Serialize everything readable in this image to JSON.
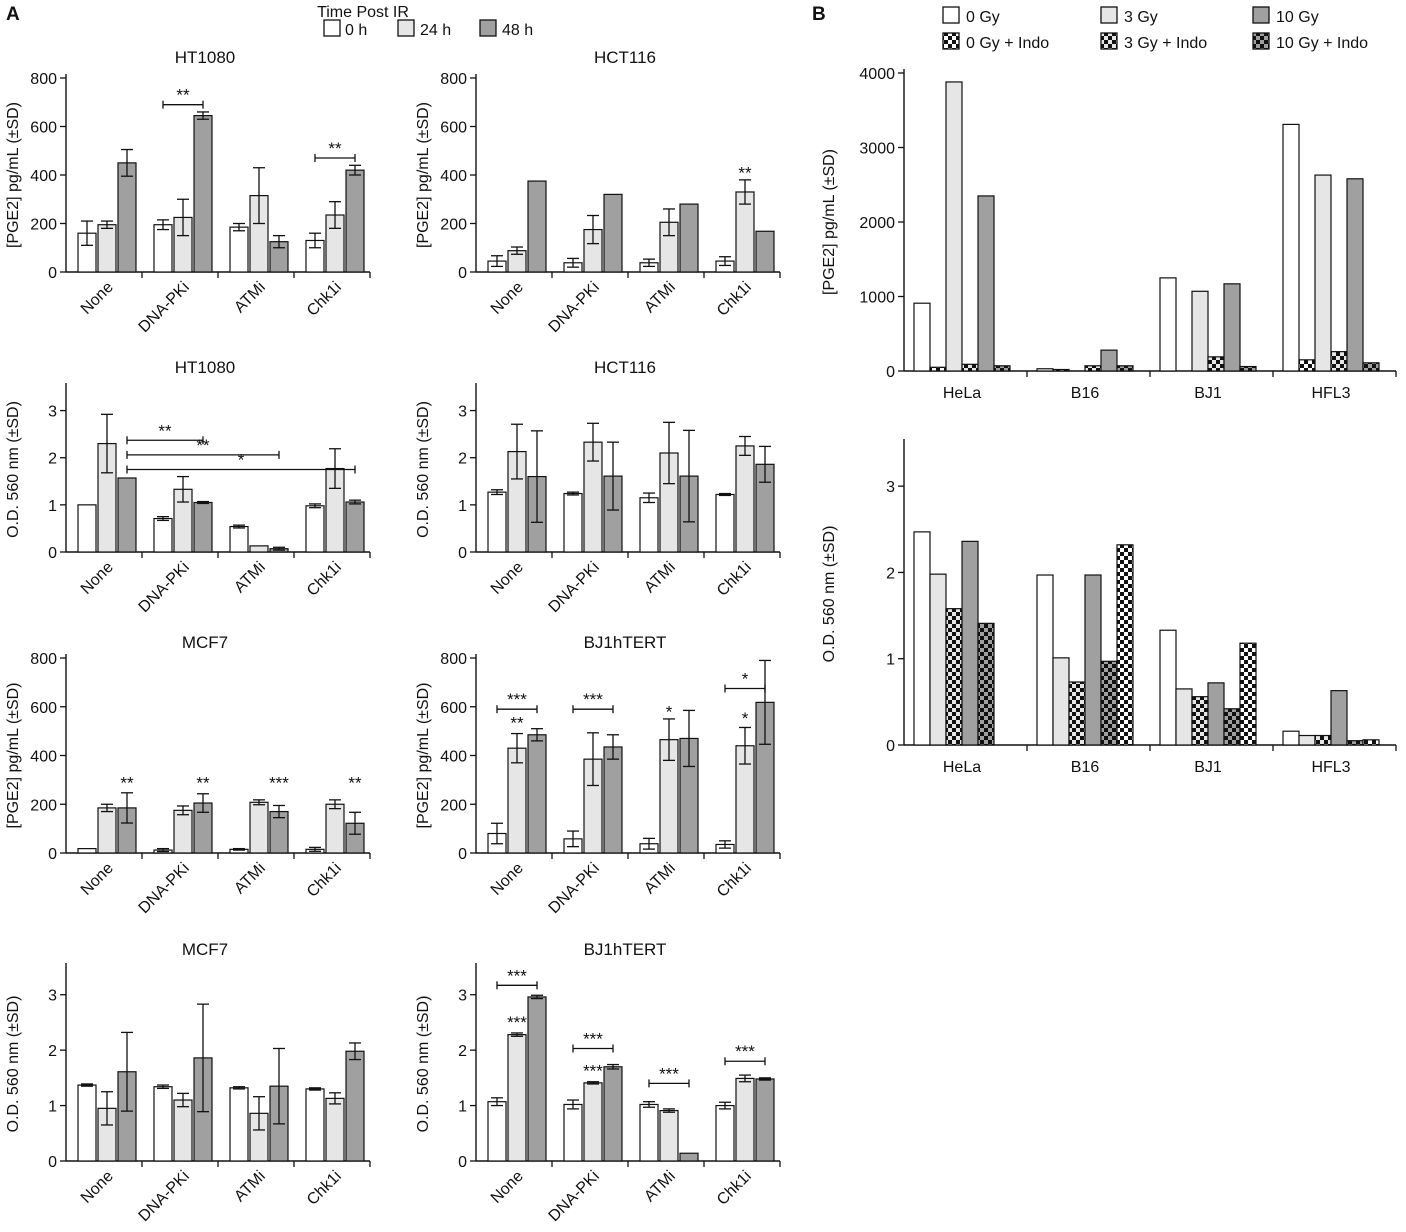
{
  "panel_labels": {
    "a": "A",
    "b": "B"
  },
  "legend_a": {
    "title": "Time Post IR",
    "items": [
      {
        "label": "0 h",
        "color": "#ffffff"
      },
      {
        "label": "24 h",
        "color": "#e6e6e6"
      },
      {
        "label": "48 h",
        "color": "#a0a0a0"
      }
    ]
  },
  "legend_b": {
    "items": [
      {
        "label": "0 Gy",
        "style": "white"
      },
      {
        "label": "3 Gy",
        "style": "light"
      },
      {
        "label": "10 Gy",
        "style": "dark"
      },
      {
        "label": "0 Gy + Indo",
        "style": "chk-white"
      },
      {
        "label": "3 Gy + Indo",
        "style": "chk-light"
      },
      {
        "label": "10 Gy + Indo",
        "style": "chk-dark"
      }
    ]
  },
  "colors": {
    "white": "#ffffff",
    "light": "#e6e6e6",
    "dark": "#a0a0a0",
    "stroke": "#111111"
  },
  "chart_data": [
    {
      "id": "a1",
      "type": "bar",
      "title": "HT1080",
      "ylabel": "[PGE2] pg/mL (±SD)",
      "ylim": [
        0,
        800
      ],
      "yticks": [
        "0",
        "200",
        "400",
        "600",
        "800"
      ],
      "categories": [
        "None",
        "DNA-PKi",
        "ATMi",
        "Chk1i"
      ],
      "series": [
        {
          "name": "0 h",
          "values": [
            160,
            195,
            185,
            130
          ],
          "err": [
            50,
            20,
            15,
            30
          ]
        },
        {
          "name": "24 h",
          "values": [
            195,
            225,
            315,
            235
          ],
          "err": [
            15,
            75,
            115,
            55
          ]
        },
        {
          "name": "48 h",
          "values": [
            450,
            645,
            125,
            420
          ],
          "err": [
            55,
            15,
            25,
            20
          ]
        }
      ],
      "brackets": [
        {
          "label": "**",
          "g1": 1,
          "s1": 0,
          "g2": 1,
          "s2": 2,
          "y": 690
        },
        {
          "label": "**",
          "g1": 3,
          "s1": 0,
          "g2": 3,
          "s2": 2,
          "y": 470
        }
      ],
      "stars": []
    },
    {
      "id": "a2",
      "type": "bar",
      "title": "HCT116",
      "ylabel": "[PGE2] pg/mL (±SD)",
      "ylim": [
        0,
        800
      ],
      "yticks": [
        "0",
        "200",
        "400",
        "600",
        "800"
      ],
      "categories": [
        "None",
        "DNA-PKi",
        "ATMi",
        "Chk1i"
      ],
      "series": [
        {
          "name": "0 h",
          "values": [
            45,
            38,
            38,
            45
          ],
          "err": [
            22,
            18,
            15,
            18
          ]
        },
        {
          "name": "24 h",
          "values": [
            88,
            175,
            205,
            330
          ],
          "err": [
            15,
            58,
            55,
            50
          ]
        },
        {
          "name": "48 h",
          "values": [
            375,
            320,
            280,
            168
          ],
          "err": [
            0,
            0,
            0,
            0
          ]
        }
      ],
      "brackets": [],
      "stars": [
        {
          "label": "**",
          "g": 3,
          "s": 1,
          "y": 385
        }
      ]
    },
    {
      "id": "a3",
      "type": "bar",
      "title": "HT1080",
      "ylabel": "O.D. 560 nm (±SD)",
      "ylim": [
        0,
        3.5
      ],
      "yticks": [
        "0",
        "1",
        "2",
        "3"
      ],
      "categories": [
        "None",
        "DNA-PKi",
        "ATMi",
        "Chk1i"
      ],
      "series": [
        {
          "name": "0 h",
          "values": [
            1.0,
            0.71,
            0.54,
            0.98
          ],
          "err": [
            0,
            0.04,
            0.03,
            0.04
          ]
        },
        {
          "name": "24 h",
          "values": [
            2.3,
            1.33,
            0.13,
            1.77
          ],
          "err": [
            0.62,
            0.27,
            0,
            0.42
          ]
        },
        {
          "name": "48 h",
          "values": [
            1.57,
            1.05,
            0.07,
            1.06
          ],
          "err": [
            0,
            0.02,
            0.03,
            0.04
          ]
        }
      ],
      "brackets": [
        {
          "label": "**",
          "g1": 0,
          "s1": 2,
          "g2": 1,
          "s2": 2,
          "y": 2.37
        },
        {
          "label": "**",
          "g1": 0,
          "s1": 2,
          "g2": 2,
          "s2": 2,
          "y": 2.06
        },
        {
          "label": "*",
          "g1": 0,
          "s1": 2,
          "g2": 3,
          "s2": 2,
          "y": 1.75
        }
      ],
      "stars": []
    },
    {
      "id": "a4",
      "type": "bar",
      "title": "HCT116",
      "ylabel": "O.D. 560 nm (±SD)",
      "ylim": [
        0,
        3.5
      ],
      "yticks": [
        "0",
        "1",
        "2",
        "3"
      ],
      "categories": [
        "None",
        "DNA-PKi",
        "ATMi",
        "Chk1i"
      ],
      "series": [
        {
          "name": "0 h",
          "values": [
            1.27,
            1.24,
            1.15,
            1.22
          ],
          "err": [
            0.05,
            0.03,
            0.1,
            0.02
          ]
        },
        {
          "name": "24 h",
          "values": [
            2.13,
            2.33,
            2.1,
            2.25
          ],
          "err": [
            0.58,
            0.4,
            0.65,
            0.2
          ]
        },
        {
          "name": "48 h",
          "values": [
            1.6,
            1.61,
            1.61,
            1.86
          ],
          "err": [
            0.97,
            0.72,
            0.97,
            0.38
          ]
        }
      ],
      "brackets": [],
      "stars": []
    },
    {
      "id": "a5",
      "type": "bar",
      "title": "MCF7",
      "ylabel": "[PGE2] pg/mL (±SD)",
      "ylim": [
        0,
        800
      ],
      "yticks": [
        "0",
        "200",
        "400",
        "600",
        "800"
      ],
      "categories": [
        "None",
        "DNA-PKi",
        "ATMi",
        "Chk1i"
      ],
      "series": [
        {
          "name": "0 h",
          "values": [
            18,
            12,
            15,
            15
          ],
          "err": [
            0,
            6,
            3,
            8
          ]
        },
        {
          "name": "24 h",
          "values": [
            185,
            175,
            208,
            200
          ],
          "err": [
            15,
            18,
            10,
            18
          ]
        },
        {
          "name": "48 h",
          "values": [
            185,
            205,
            170,
            122
          ],
          "err": [
            62,
            38,
            25,
            45
          ]
        }
      ],
      "brackets": [],
      "stars": [
        {
          "label": "**",
          "g": 0,
          "s": 2,
          "y": 265
        },
        {
          "label": "**",
          "g": 1,
          "s": 2,
          "y": 265
        },
        {
          "label": "***",
          "g": 2,
          "s": 2,
          "y": 265
        },
        {
          "label": "**",
          "g": 3,
          "s": 2,
          "y": 265
        }
      ]
    },
    {
      "id": "a6",
      "type": "bar",
      "title": "BJ1hTERT",
      "ylabel": "[PGE2] pg/mL (±SD)",
      "ylim": [
        0,
        800
      ],
      "yticks": [
        "0",
        "200",
        "400",
        "600",
        "800"
      ],
      "categories": [
        "None",
        "DNA-PKi",
        "ATMi",
        "Chk1i"
      ],
      "series": [
        {
          "name": "0 h",
          "values": [
            80,
            58,
            38,
            35
          ],
          "err": [
            42,
            32,
            22,
            15
          ]
        },
        {
          "name": "24 h",
          "values": [
            430,
            385,
            465,
            440
          ],
          "err": [
            60,
            108,
            85,
            75
          ]
        },
        {
          "name": "48 h",
          "values": [
            485,
            435,
            470,
            618
          ],
          "err": [
            25,
            50,
            115,
            172
          ]
        }
      ],
      "brackets": [
        {
          "label": "***",
          "g1": 0,
          "s1": 0,
          "g2": 0,
          "s2": 2,
          "y": 590
        },
        {
          "label": "***",
          "g1": 1,
          "s1": 0,
          "g2": 1,
          "s2": 2,
          "y": 590
        },
        {
          "label": "*",
          "g1": 3,
          "s1": 0,
          "g2": 3,
          "s2": 2,
          "y": 675
        }
      ],
      "stars": [
        {
          "label": "**",
          "g": 0,
          "s": 1,
          "y": 510
        },
        {
          "label": "*",
          "g": 2,
          "s": 1,
          "y": 555
        },
        {
          "label": "*",
          "g": 3,
          "s": 1,
          "y": 530
        }
      ]
    },
    {
      "id": "a7",
      "type": "bar",
      "title": "MCF7",
      "ylabel": "O.D. 560 nm (±SD)",
      "ylim": [
        0,
        3.5
      ],
      "yticks": [
        "0",
        "1",
        "2",
        "3"
      ],
      "categories": [
        "None",
        "DNA-PKi",
        "ATMi",
        "Chk1i"
      ],
      "series": [
        {
          "name": "0 h",
          "values": [
            1.37,
            1.34,
            1.32,
            1.3
          ],
          "err": [
            0.02,
            0.03,
            0.02,
            0.02
          ]
        },
        {
          "name": "24 h",
          "values": [
            0.95,
            1.1,
            0.86,
            1.13
          ],
          "err": [
            0.3,
            0.12,
            0.3,
            0.1
          ]
        },
        {
          "name": "48 h",
          "values": [
            1.61,
            1.86,
            1.35,
            1.98
          ],
          "err": [
            0.71,
            0.97,
            0.68,
            0.15
          ]
        }
      ],
      "brackets": [],
      "stars": []
    },
    {
      "id": "a8",
      "type": "bar",
      "title": "BJ1hTERT",
      "ylabel": "O.D. 560 nm (±SD)",
      "ylim": [
        0,
        3.5
      ],
      "yticks": [
        "0",
        "1",
        "2",
        "3"
      ],
      "categories": [
        "None",
        "DNA-PKi",
        "ATMi",
        "Chk1i"
      ],
      "series": [
        {
          "name": "0 h",
          "values": [
            1.07,
            1.02,
            1.02,
            1.0
          ],
          "err": [
            0.07,
            0.08,
            0.05,
            0.06
          ]
        },
        {
          "name": "24 h",
          "values": [
            2.28,
            1.41,
            0.91,
            1.49
          ],
          "err": [
            0.03,
            0.02,
            0.03,
            0.06
          ]
        },
        {
          "name": "48 h",
          "values": [
            2.96,
            1.7,
            0.14,
            1.48
          ],
          "err": [
            0.03,
            0.04,
            0,
            0.02
          ]
        }
      ],
      "brackets": [
        {
          "label": "***",
          "g1": 0,
          "s1": 0,
          "g2": 0,
          "s2": 2,
          "y": 3.17
        },
        {
          "label": "***",
          "g1": 1,
          "s1": 0,
          "g2": 1,
          "s2": 2,
          "y": 2.03
        },
        {
          "label": "***",
          "g1": 2,
          "s1": 0,
          "g2": 2,
          "s2": 2,
          "y": 1.4
        },
        {
          "label": "***",
          "g1": 3,
          "s1": 0,
          "g2": 3,
          "s2": 2,
          "y": 1.8
        }
      ],
      "stars": [
        {
          "label": "***",
          "g": 0,
          "s": 1,
          "y": 2.4
        },
        {
          "label": "***",
          "g": 1,
          "s": 1,
          "y": 1.52
        }
      ]
    },
    {
      "id": "b1",
      "type": "bar",
      "title": "",
      "ylabel": "[PGE2] pg/mL (±SD)",
      "ylim": [
        0,
        4000
      ],
      "yticks": [
        "0",
        "1000",
        "2000",
        "3000",
        "4000"
      ],
      "categories": [
        "HeLa",
        "B16",
        "BJ1",
        "HFL3"
      ],
      "series": [
        {
          "name": "0 Gy",
          "style": "white",
          "values": [
            910,
            30,
            1250,
            3310
          ]
        },
        {
          "name": "0 Gy + Indo",
          "style": "chk-white",
          "values": [
            50,
            20,
            0,
            150
          ]
        },
        {
          "name": "3 Gy",
          "style": "light",
          "values": [
            3880,
            0,
            1070,
            2630
          ]
        },
        {
          "name": "3 Gy + Indo",
          "style": "chk-light",
          "values": [
            90,
            70,
            190,
            260
          ]
        },
        {
          "name": "10 Gy",
          "style": "dark",
          "values": [
            2350,
            280,
            1170,
            2580
          ]
        },
        {
          "name": "10 Gy + Indo",
          "style": "chk-dark",
          "values": [
            70,
            70,
            60,
            110
          ]
        }
      ],
      "brackets": [],
      "stars": []
    },
    {
      "id": "b2",
      "type": "bar",
      "title": "",
      "ylabel": "O.D. 560 nm (±SD)",
      "ylim": [
        0,
        3.5
      ],
      "yticks": [
        "0",
        "1",
        "2",
        "3"
      ],
      "categories": [
        "HeLa",
        "B16",
        "BJ1",
        "HFL3"
      ],
      "series": [
        {
          "name": "0 Gy",
          "style": "white",
          "values": [
            2.47,
            1.97,
            1.33,
            0.16
          ]
        },
        {
          "name": "3 Gy",
          "style": "light",
          "values": [
            1.98,
            1.01,
            0.65,
            0.11
          ]
        },
        {
          "name": "3 Gy + Indo",
          "style": "chk-light",
          "values": [
            1.58,
            0.73,
            0.56,
            0.11
          ]
        },
        {
          "name": "10 Gy",
          "style": "dark",
          "values": [
            2.36,
            1.97,
            0.72,
            0.63
          ]
        },
        {
          "name": "10 Gy + Indo",
          "style": "chk-dark",
          "values": [
            1.41,
            0.97,
            0.42,
            0.05
          ]
        },
        {
          "name": "0 Gy + Indo",
          "style": "chk-white",
          "values": [
            0,
            2.32,
            1.18,
            0.06
          ]
        }
      ],
      "brackets": [],
      "stars": []
    }
  ]
}
